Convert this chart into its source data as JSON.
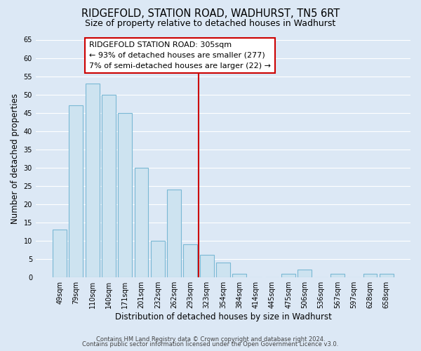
{
  "title": "RIDGEFOLD, STATION ROAD, WADHURST, TN5 6RT",
  "subtitle": "Size of property relative to detached houses in Wadhurst",
  "xlabel": "Distribution of detached houses by size in Wadhurst",
  "ylabel": "Number of detached properties",
  "categories": [
    "49sqm",
    "79sqm",
    "110sqm",
    "140sqm",
    "171sqm",
    "201sqm",
    "232sqm",
    "262sqm",
    "293sqm",
    "323sqm",
    "354sqm",
    "384sqm",
    "414sqm",
    "445sqm",
    "475sqm",
    "506sqm",
    "536sqm",
    "567sqm",
    "597sqm",
    "628sqm",
    "658sqm"
  ],
  "values": [
    13,
    47,
    53,
    50,
    45,
    30,
    10,
    24,
    9,
    6,
    4,
    1,
    0,
    0,
    1,
    2,
    0,
    1,
    0,
    1,
    1
  ],
  "bar_color": "#cde3f0",
  "bar_edge_color": "#7ab8d4",
  "ylim": [
    0,
    65
  ],
  "yticks": [
    0,
    5,
    10,
    15,
    20,
    25,
    30,
    35,
    40,
    45,
    50,
    55,
    60,
    65
  ],
  "vline_x": 8.5,
  "vline_color": "#cc0000",
  "annotation_title": "RIDGEFOLD STATION ROAD: 305sqm",
  "annotation_line1": "← 93% of detached houses are smaller (277)",
  "annotation_line2": "7% of semi-detached houses are larger (22) →",
  "annotation_box_facecolor": "#ffffff",
  "annotation_box_edgecolor": "#cc0000",
  "footer1": "Contains HM Land Registry data © Crown copyright and database right 2024.",
  "footer2": "Contains public sector information licensed under the Open Government Licence v3.0.",
  "fig_facecolor": "#dce8f5",
  "plot_facecolor": "#dce8f5",
  "grid_color": "#ffffff",
  "title_fontsize": 10.5,
  "subtitle_fontsize": 9,
  "tick_fontsize": 7,
  "ylabel_fontsize": 8.5,
  "xlabel_fontsize": 8.5,
  "annotation_fontsize": 8,
  "footer_fontsize": 6
}
